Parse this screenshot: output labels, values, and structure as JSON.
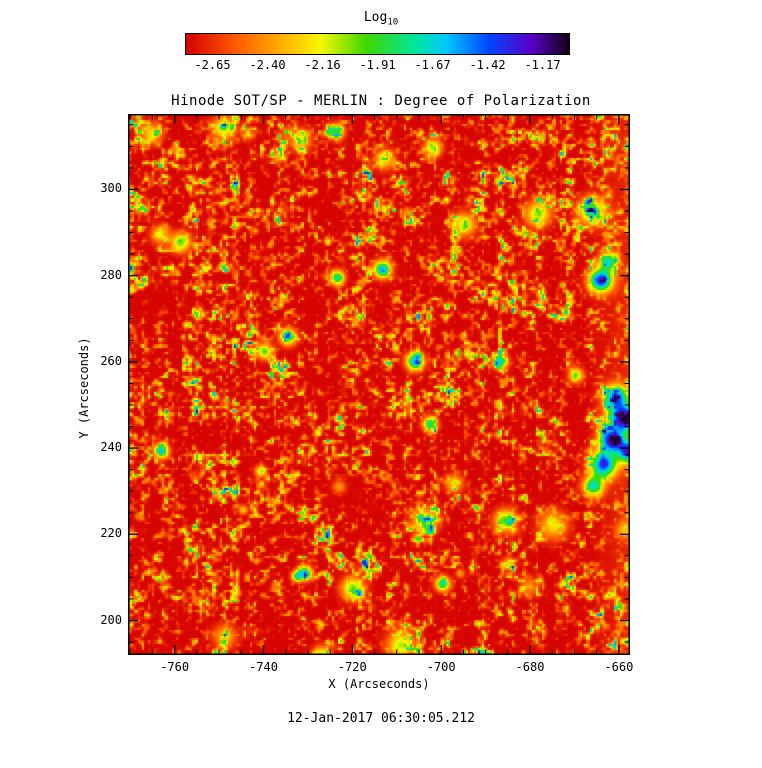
{
  "colorbar": {
    "title": "Log",
    "title_sub": "10",
    "tick_labels": [
      "-2.65",
      "-2.40",
      "-2.16",
      "-1.91",
      "-1.67",
      "-1.42",
      "-1.17"
    ]
  },
  "footer": {
    "timestamp": "12-Jan-2017 06:30:05.212"
  },
  "chart_data": {
    "type": "heatmap",
    "title": "Hinode SOT/SP - MERLIN : Degree of Polarization",
    "xlabel": "X (Arcseconds)",
    "ylabel": "Y (Arcseconds)",
    "x_range": [
      -770.5,
      -657.5
    ],
    "y_range": [
      192,
      317.5
    ],
    "x_major_ticks": [
      -760,
      -740,
      -720,
      -700,
      -680,
      -660
    ],
    "y_major_ticks": [
      200,
      220,
      240,
      260,
      280,
      300
    ],
    "minor_tick_step": 5,
    "grid": false,
    "legend": null,
    "colorbar_scale": "Log10 of degree of polarization",
    "colorbar_ticks": [
      -2.65,
      -2.4,
      -2.16,
      -1.91,
      -1.67,
      -1.42,
      -1.17
    ],
    "colorbar_range": [
      -2.77,
      -1.05
    ],
    "colormap": [
      {
        "pos": 0.0,
        "color": "#d40000"
      },
      {
        "pos": 0.13,
        "color": "#ff5a00"
      },
      {
        "pos": 0.24,
        "color": "#ffa800"
      },
      {
        "pos": 0.35,
        "color": "#f8f800"
      },
      {
        "pos": 0.47,
        "color": "#3ed800"
      },
      {
        "pos": 0.6,
        "color": "#00e6a0"
      },
      {
        "pos": 0.68,
        "color": "#00c8ff"
      },
      {
        "pos": 0.79,
        "color": "#0046ff"
      },
      {
        "pos": 0.9,
        "color": "#5a00c8"
      },
      {
        "pos": 1.0,
        "color": "#140014"
      }
    ],
    "value_description": "Solar granulation-scale polarization map: predominantly low values ~10^-2.6 (red/orange) with a speckled yellow-green network of slightly higher polarization, sparse cyan/blue patches of strong polarization, faint vertical scan striping, and a prominent dark-blue high-polarization cluster near x = -660, y = 235-255 plus a smaller blue patch near x = -663, y = 282."
  }
}
